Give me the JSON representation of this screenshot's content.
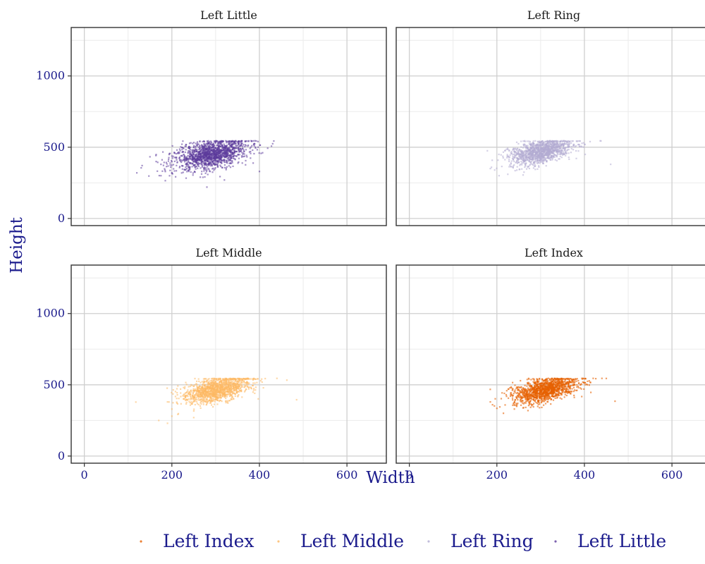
{
  "chart_data": {
    "type": "scatter",
    "facet_layout": "2x2",
    "xlabel": "Width",
    "ylabel": "Height",
    "xlim": [
      -30,
      690
    ],
    "ylim": [
      -50,
      1340
    ],
    "x_ticks": [
      0,
      200,
      400,
      600
    ],
    "y_ticks": [
      0,
      500,
      1000
    ],
    "x_minor_ticks": [
      100,
      300,
      500
    ],
    "y_minor_ticks": [
      250,
      750,
      1250
    ],
    "grid": true,
    "legend_position": "bottom",
    "legend": [
      "Left Index",
      "Left Middle",
      "Left Ring",
      "Left Little"
    ],
    "facets": [
      {
        "label": "Left Little",
        "color": "#5b3a9b",
        "opacity": 0.55,
        "cluster": {
          "x_center": 290,
          "y_center": 450,
          "x_sd": 42,
          "y_sd": 48,
          "slope": 0.55,
          "y_cap": 545,
          "n": 1500
        },
        "outliers": [
          [
            120,
            320
          ],
          [
            130,
            355
          ],
          [
            175,
            300
          ],
          [
            175,
            380
          ],
          [
            185,
            265
          ],
          [
            200,
            320
          ],
          [
            265,
            290
          ],
          [
            280,
            220
          ],
          [
            320,
            270
          ],
          [
            390,
            545
          ],
          [
            400,
            330
          ]
        ]
      },
      {
        "label": "Left Ring",
        "color": "#b2abd2",
        "opacity": 0.55,
        "cluster": {
          "x_center": 300,
          "y_center": 470,
          "x_sd": 36,
          "y_sd": 40,
          "slope": 0.65,
          "y_cap": 545,
          "n": 1300
        },
        "outliers": [
          [
            185,
            350
          ],
          [
            195,
            340
          ],
          [
            205,
            300
          ],
          [
            225,
            310
          ],
          [
            260,
            305
          ],
          [
            460,
            380
          ]
        ]
      },
      {
        "label": "Left Middle",
        "color": "#fdb863",
        "opacity": 0.55,
        "cluster": {
          "x_center": 300,
          "y_center": 465,
          "x_sd": 38,
          "y_sd": 42,
          "slope": 0.65,
          "y_cap": 545,
          "n": 1300
        },
        "outliers": [
          [
            170,
            250
          ],
          [
            190,
            230
          ],
          [
            190,
            380
          ],
          [
            200,
            280
          ],
          [
            200,
            330
          ],
          [
            250,
            270
          ],
          [
            440,
            545
          ],
          [
            485,
            395
          ]
        ]
      },
      {
        "label": "Left Index",
        "color": "#e66101",
        "opacity": 0.6,
        "cluster": {
          "x_center": 310,
          "y_center": 465,
          "x_sd": 37,
          "y_sd": 40,
          "slope": 0.65,
          "y_cap": 545,
          "n": 1300
        },
        "outliers": [
          [
            185,
            380
          ],
          [
            190,
            360
          ],
          [
            200,
            335
          ],
          [
            215,
            300
          ],
          [
            240,
            330
          ],
          [
            420,
            545
          ],
          [
            440,
            545
          ],
          [
            470,
            385
          ]
        ]
      }
    ]
  }
}
